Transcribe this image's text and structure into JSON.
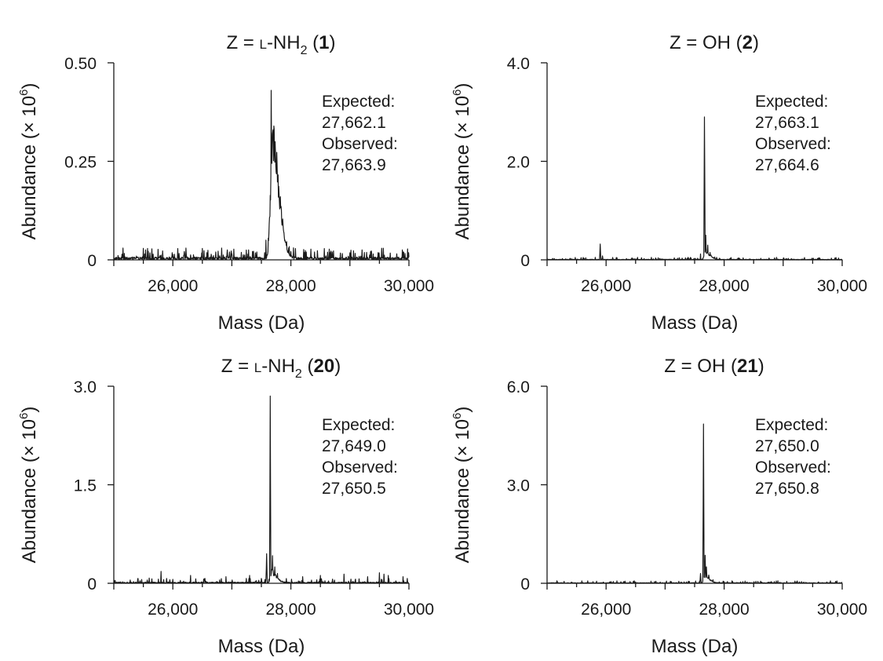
{
  "chart_data": [
    {
      "type": "line",
      "title": {
        "prefix": "Z = ",
        "smallcaps": "L",
        "mid": "-NH",
        "subscript": "2",
        "suffix_open": " (",
        "number": "1",
        "suffix_close": ")"
      },
      "xlabel": "Mass (Da)",
      "ylabel": {
        "base": "Abundance (× 10",
        "exponent": "6",
        "close": ")"
      },
      "xlim": [
        25000,
        30000
      ],
      "ylim": [
        0,
        0.5
      ],
      "xticks": [
        26000,
        28000,
        30000
      ],
      "xtick_labels": [
        "26,000",
        "28,000",
        "30,000"
      ],
      "yticks": [
        0,
        0.25,
        0.5
      ],
      "ytick_labels": [
        "0",
        "0.25",
        "0.50"
      ],
      "annotation": [
        "Expected:",
        "27,662.1",
        "Observed:",
        "27,663.9"
      ],
      "series": [
        {
          "peaks": [
            [
              27664,
              0.43
            ],
            [
              27700,
              0.33
            ],
            [
              27740,
              0.22
            ],
            [
              27780,
              0.16
            ],
            [
              27840,
              0.1
            ],
            [
              27900,
              0.05
            ],
            [
              27960,
              0.03
            ],
            [
              26920,
              0.025
            ],
            [
              26960,
              0.02
            ],
            [
              27000,
              0.015
            ]
          ],
          "profile": {
            "center": 27690,
            "amplitude": 0.3,
            "rise": 35,
            "decay": 110
          },
          "noise_level": 0.012,
          "spikes": [
            [
              25800,
              0.012
            ],
            [
              26200,
              0.015
            ],
            [
              28400,
              0.02
            ],
            [
              28700,
              0.02
            ],
            [
              29000,
              0.018
            ],
            [
              29900,
              0.02
            ],
            [
              27580,
              0.05
            ]
          ]
        }
      ]
    },
    {
      "type": "line",
      "title": {
        "prefix": "Z = OH",
        "smallcaps": "",
        "mid": "",
        "subscript": "",
        "suffix_open": " (",
        "number": "2",
        "suffix_close": ")"
      },
      "xlabel": "Mass (Da)",
      "ylabel": {
        "base": "Abundance (× 10",
        "exponent": "6",
        "close": ")"
      },
      "xlim": [
        25000,
        30000
      ],
      "ylim": [
        0,
        4.0
      ],
      "xticks": [
        26000,
        28000,
        30000
      ],
      "xtick_labels": [
        "26,000",
        "28,000",
        "30,000"
      ],
      "yticks": [
        0,
        2.0,
        4.0
      ],
      "ytick_labels": [
        "0",
        "2.0",
        "4.0"
      ],
      "annotation": [
        "Expected:",
        "27,663.1",
        "Observed:",
        "27,664.6"
      ],
      "series": [
        {
          "peaks": [
            [
              27665,
              2.9
            ],
            [
              27690,
              0.5
            ],
            [
              27720,
              0.3
            ],
            [
              27760,
              0.15
            ],
            [
              25900,
              0.32
            ],
            [
              25940,
              0.08
            ]
          ],
          "profile": {
            "center": 27680,
            "amplitude": 0.15,
            "rise": 20,
            "decay": 80
          },
          "noise_level": 0.02,
          "spikes": [
            [
              27600,
              0.12
            ],
            [
              28100,
              0.03
            ],
            [
              26800,
              0.02
            ]
          ]
        }
      ]
    },
    {
      "type": "line",
      "title": {
        "prefix": "Z = ",
        "smallcaps": "L",
        "mid": "-NH",
        "subscript": "2",
        "suffix_open": " (",
        "number": "20",
        "suffix_close": ")"
      },
      "xlabel": "Mass (Da)",
      "ylabel": {
        "base": "Abundance (× 10",
        "exponent": "6",
        "close": ")"
      },
      "xlim": [
        25000,
        30000
      ],
      "ylim": [
        0,
        3.0
      ],
      "xticks": [
        26000,
        28000,
        30000
      ],
      "xtick_labels": [
        "26,000",
        "28,000",
        "30,000"
      ],
      "yticks": [
        0,
        1.5,
        3.0
      ],
      "ytick_labels": [
        "0",
        "1.5",
        "3.0"
      ],
      "annotation": [
        "Expected:",
        "27,649.0",
        "Observed:",
        "27,650.5"
      ],
      "series": [
        {
          "peaks": [
            [
              27651,
              2.85
            ],
            [
              27690,
              0.42
            ],
            [
              27730,
              0.25
            ],
            [
              27770,
              0.15
            ],
            [
              27590,
              0.45
            ]
          ],
          "profile": {
            "center": 27670,
            "amplitude": 0.15,
            "rise": 20,
            "decay": 90
          },
          "noise_level": 0.03,
          "spikes": [
            [
              25600,
              0.08
            ],
            [
              25800,
              0.18
            ],
            [
              26000,
              0.06
            ],
            [
              26300,
              0.12
            ],
            [
              26900,
              0.1
            ],
            [
              27300,
              0.12
            ],
            [
              28200,
              0.1
            ],
            [
              28500,
              0.12
            ],
            [
              28900,
              0.14
            ],
            [
              29300,
              0.1
            ],
            [
              29500,
              0.16
            ],
            [
              29580,
              0.14
            ],
            [
              29650,
              0.12
            ],
            [
              29900,
              0.1
            ]
          ]
        }
      ]
    },
    {
      "type": "line",
      "title": {
        "prefix": "Z = OH",
        "smallcaps": "",
        "mid": "",
        "subscript": "",
        "suffix_open": " (",
        "number": "21",
        "suffix_close": ")"
      },
      "xlabel": "Mass (Da)",
      "ylabel": {
        "base": "Abundance (× 10",
        "exponent": "6",
        "close": ")"
      },
      "xlim": [
        25000,
        30000
      ],
      "ylim": [
        0,
        6.0
      ],
      "xticks": [
        26000,
        28000,
        30000
      ],
      "xtick_labels": [
        "26,000",
        "28,000",
        "30,000"
      ],
      "yticks": [
        0,
        3.0,
        6.0
      ],
      "ytick_labels": [
        "0",
        "3.0",
        "6.0"
      ],
      "annotation": [
        "Expected:",
        "27,650.0",
        "Observed:",
        "27,650.8"
      ],
      "series": [
        {
          "peaks": [
            [
              27651,
              4.85
            ],
            [
              27675,
              0.85
            ],
            [
              27700,
              0.5
            ],
            [
              27740,
              0.25
            ],
            [
              27600,
              0.3
            ]
          ],
          "profile": {
            "center": 27670,
            "amplitude": 0.2,
            "rise": 18,
            "decay": 80
          },
          "noise_level": 0.03,
          "spikes": [
            [
              26500,
              0.04
            ],
            [
              28800,
              0.05
            ],
            [
              29600,
              0.04
            ]
          ]
        }
      ]
    }
  ]
}
